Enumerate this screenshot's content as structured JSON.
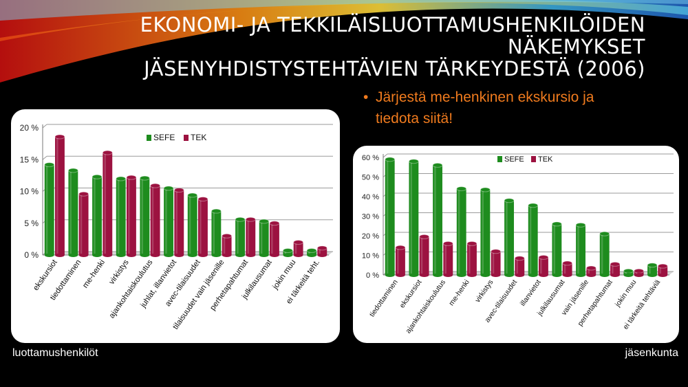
{
  "slide": {
    "title_line1": "EKONOMI- JA TEKKILÄISLUOTTAMUSHENKILÖIDEN NÄKEMYKSET",
    "title_line2": "JÄSENYHDISTYSTEHTÄVIEN TÄRKEYDESTÄ (2006)",
    "bullet_lines": [
      "Järjestä me-henkinen ekskursio ja",
      "tiedota siitä!"
    ],
    "caption_left": "luottamushenkilöt",
    "caption_right": "jäsenkunta"
  },
  "colors": {
    "sefe": "#1e8c1e",
    "tek": "#9c1240",
    "bullet": "#f07b1e"
  },
  "chart_data": [
    {
      "type": "bar",
      "categories": [
        "ekskursiot",
        "tiedottaminen",
        "me-henki",
        "virkistys",
        "ajankohtaiskoulutus",
        "juhlat, illanvietot",
        "avec-tilaisuudet",
        "tilaisuudet vain jäsenille",
        "perhetapahtumat",
        "julkilausumat",
        "jokin muu",
        "ei tärkeitä teht."
      ],
      "series": [
        {
          "name": "SEFE",
          "values": [
            14.2,
            13.3,
            12.3,
            12.0,
            12.1,
            10.5,
            9.4,
            6.9,
            5.6,
            5.3,
            0.7,
            0.7
          ]
        },
        {
          "name": "TEK",
          "values": [
            18.6,
            9.6,
            16.1,
            12.2,
            10.9,
            10.2,
            8.8,
            3.0,
            5.6,
            5.0,
            2.0,
            1.1
          ]
        }
      ],
      "yticks": [
        "0 %",
        "5 %",
        "10 %",
        "15 %",
        "20 %"
      ],
      "ylim": [
        0,
        20
      ],
      "legend": "top"
    },
    {
      "type": "bar",
      "categories": [
        "tiedottaminen",
        "ekskursiot",
        "ajankohtaiskoulutus",
        "me-henki",
        "virkistys",
        "avec-tilaisuudet",
        "illanvietot",
        "julkilausumat",
        "vain jäsenille",
        "perhetapahtumat",
        "jokin muu",
        "ei tärkeitä tehtäviä"
      ],
      "series": [
        {
          "name": "SEFE",
          "values": [
            59,
            58,
            56,
            44,
            43.5,
            38,
            35.5,
            26,
            25.5,
            21,
            2,
            5
          ]
        },
        {
          "name": "TEK",
          "values": [
            14,
            19.5,
            16,
            16,
            12,
            8.5,
            9,
            6,
            3.5,
            5.5,
            2,
            4.5
          ]
        }
      ],
      "yticks": [
        "0 %",
        "10 %",
        "20 %",
        "30 %",
        "40 %",
        "50 %",
        "60 %"
      ],
      "ylim": [
        0,
        60
      ],
      "legend": "top"
    }
  ]
}
